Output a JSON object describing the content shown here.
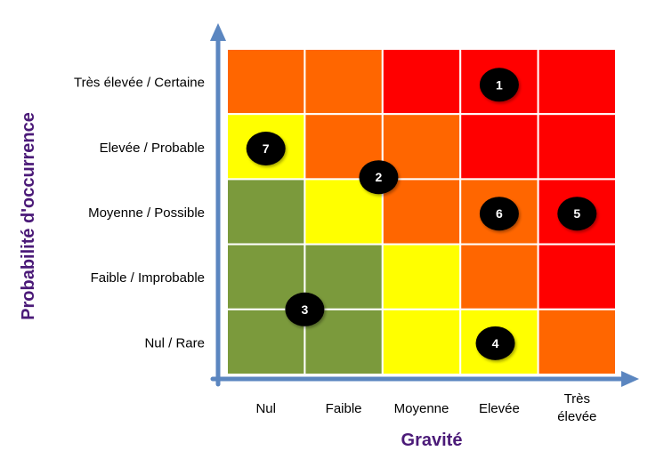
{
  "axes": {
    "y_title": "Probabilité d'occurrence",
    "x_title": "Gravité",
    "y_labels": [
      "Très élevée / Certaine",
      "Elevée / Probable",
      "Moyenne / Possible",
      "Faible / Improbable",
      "Nul / Rare"
    ],
    "x_labels": [
      [
        "Nul"
      ],
      [
        "Faible"
      ],
      [
        "Moyenne"
      ],
      [
        "Elevée"
      ],
      [
        "Très",
        "élevée"
      ]
    ]
  },
  "colors": {
    "green": "#7b9a3c",
    "yellow": "#ffff00",
    "orange": "#ff6600",
    "red": "#ff0000",
    "axis": "#5b86c0",
    "title": "#4b1a78",
    "marker": "#000000",
    "marker_text": "#ffffff"
  },
  "matrix": [
    [
      "orange",
      "orange",
      "red",
      "red",
      "red"
    ],
    [
      "yellow",
      "orange",
      "orange",
      "red",
      "red"
    ],
    [
      "green",
      "yellow",
      "orange",
      "orange",
      "red"
    ],
    [
      "green",
      "green",
      "yellow",
      "orange",
      "red"
    ],
    [
      "green",
      "green",
      "yellow",
      "yellow",
      "orange"
    ]
  ],
  "risks": [
    {
      "label": "1",
      "col": 3.5,
      "row": 0.55
    },
    {
      "label": "2",
      "col": 1.95,
      "row": 1.97
    },
    {
      "label": "3",
      "col": 1.0,
      "row": 4.0
    },
    {
      "label": "4",
      "col": 3.45,
      "row": 4.52
    },
    {
      "label": "5",
      "col": 4.5,
      "row": 2.53
    },
    {
      "label": "6",
      "col": 3.5,
      "row": 2.53
    },
    {
      "label": "7",
      "col": 0.5,
      "row": 1.53
    }
  ]
}
